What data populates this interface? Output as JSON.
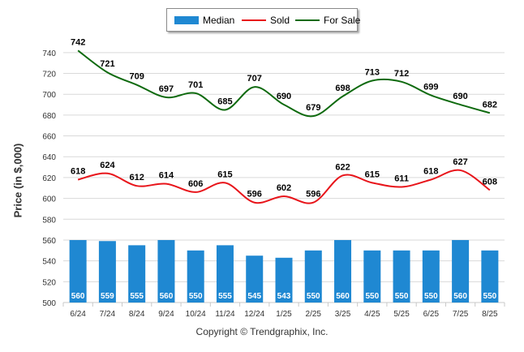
{
  "chart_data": {
    "type": "bar",
    "categories": [
      "6/24",
      "7/24",
      "8/24",
      "9/24",
      "10/24",
      "11/24",
      "12/24",
      "1/25",
      "2/25",
      "3/25",
      "4/25",
      "5/25",
      "6/25",
      "7/25",
      "8/25"
    ],
    "series": [
      {
        "name": "Median",
        "type": "bar",
        "color": "#1f88d2",
        "values": [
          560,
          559,
          555,
          560,
          550,
          555,
          545,
          543,
          550,
          560,
          550,
          550,
          550,
          560,
          550
        ]
      },
      {
        "name": "Sold",
        "type": "line",
        "color": "#e8141a",
        "values": [
          618,
          624,
          612,
          614,
          606,
          615,
          596,
          602,
          596,
          622,
          615,
          611,
          618,
          627,
          608
        ]
      },
      {
        "name": "For Sale",
        "type": "line",
        "color": "#0e6a0e",
        "values": [
          742,
          721,
          709,
          697,
          701,
          685,
          707,
          690,
          679,
          698,
          713,
          712,
          699,
          690,
          682
        ]
      }
    ],
    "ylabel": "Price (in $,000)",
    "ylim": [
      500,
      750
    ],
    "yticks": [
      500,
      520,
      540,
      560,
      580,
      600,
      620,
      640,
      660,
      680,
      700,
      720,
      740
    ],
    "grid": true,
    "legend_position": "top-center"
  },
  "legend": [
    {
      "label": "Median",
      "kind": "bar",
      "color": "#1f88d2"
    },
    {
      "label": "Sold",
      "kind": "line",
      "color": "#e8141a"
    },
    {
      "label": "For Sale",
      "kind": "line",
      "color": "#0e6a0e"
    }
  ],
  "copyright": "Copyright © Trendgraphix, Inc."
}
